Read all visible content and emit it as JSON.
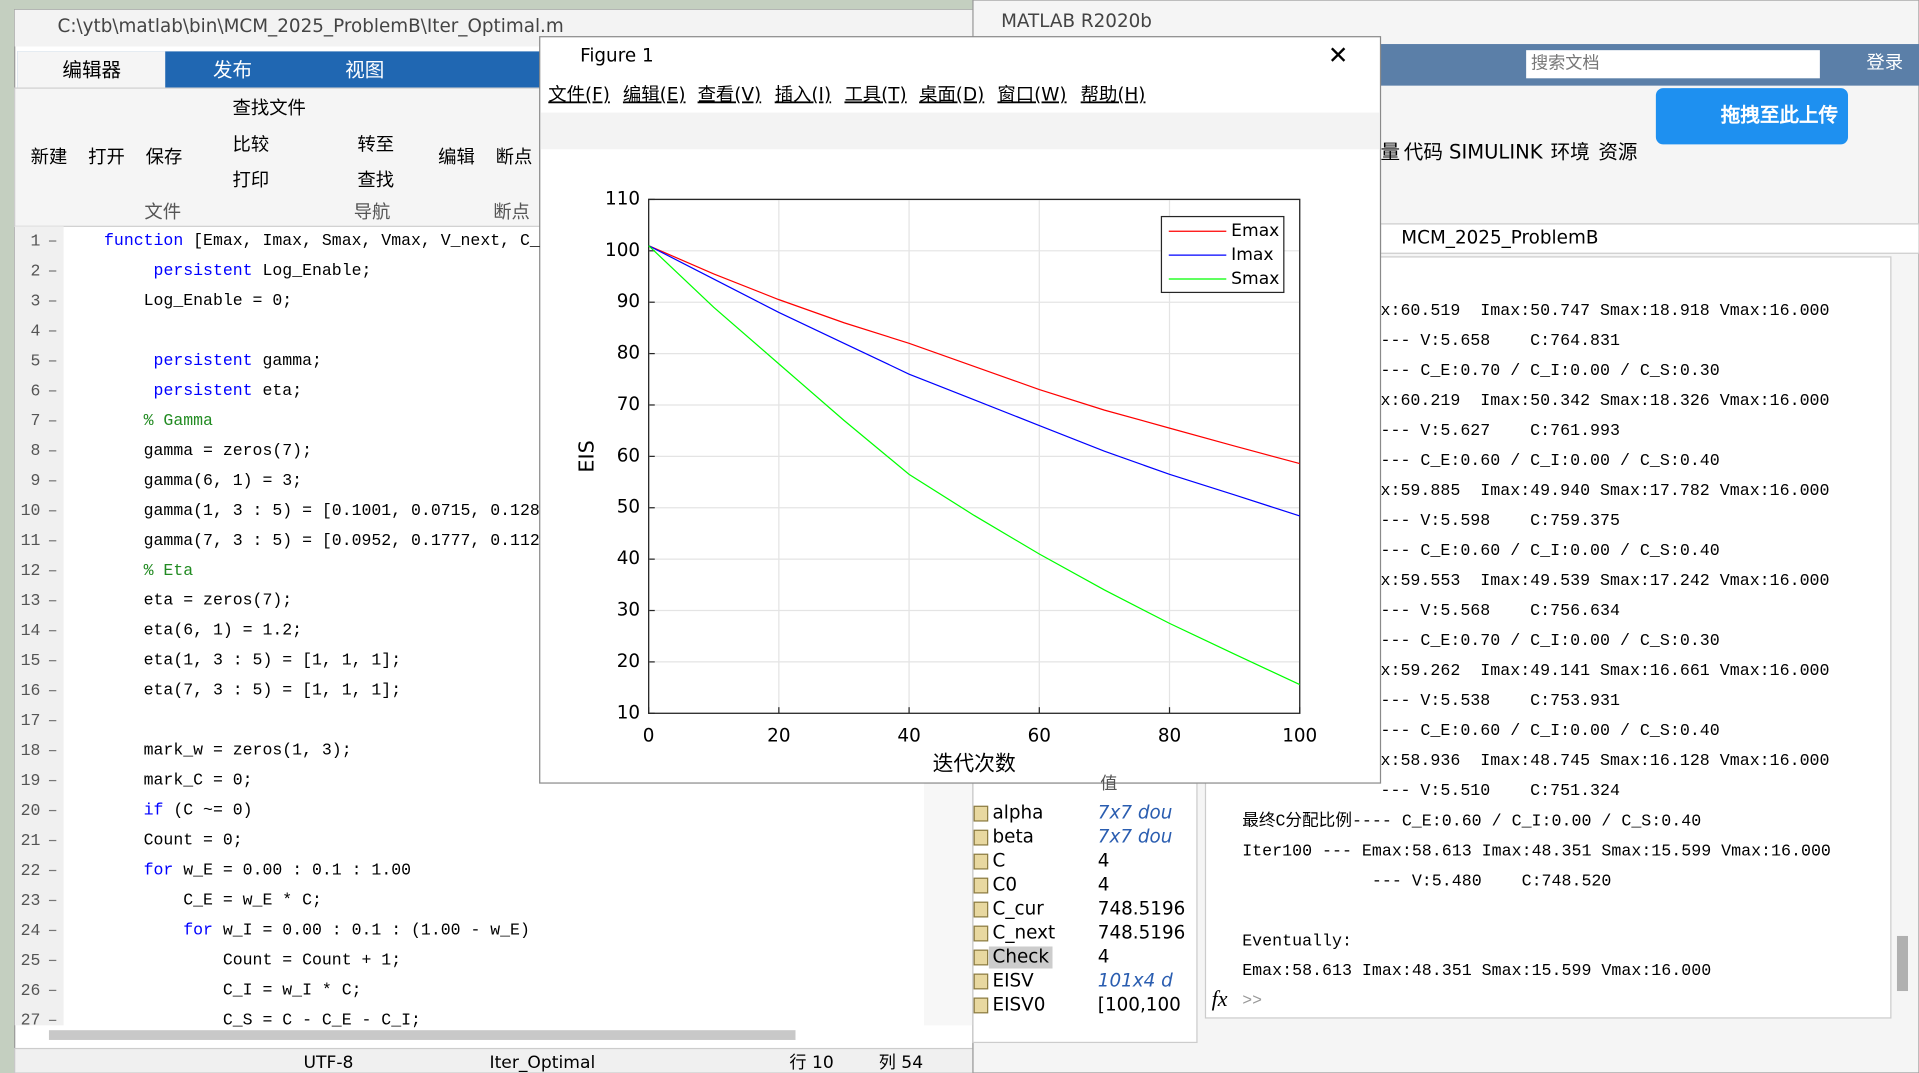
{
  "editor": {
    "title": "C:\\ytb\\matlab\\bin\\MCM_2025_ProblemB\\Iter_Optimal.m",
    "tabs": [
      "编辑器",
      "发布",
      "视图"
    ],
    "buttons": [
      "新建",
      "打开",
      "保存",
      "查找文件",
      "比较",
      "打印",
      "转至",
      "查找",
      "编辑",
      "断点"
    ],
    "groups": [
      "文件",
      "导航",
      "断点"
    ],
    "code": [
      {
        "n": 1,
        "text": "function [Emax, Imax, Smax, Vmax, V_next, C_"
      },
      {
        "n": 2,
        "text": "     persistent Log_Enable;"
      },
      {
        "n": 3,
        "text": "    Log_Enable = 0;"
      },
      {
        "n": 4
      },
      {
        "n": 5,
        "text": "     persistent gamma;"
      },
      {
        "n": 6,
        "text": "     persistent eta;"
      },
      {
        "n": 7,
        "text": "    % Gamma"
      },
      {
        "n": 8,
        "text": "    gamma = zeros(7);"
      },
      {
        "n": 9,
        "text": "    gamma(6, 1) = 3;"
      },
      {
        "n": 10,
        "text": "    gamma(1, 3 : 5) = [0.1001, 0.0715, 0.128"
      },
      {
        "n": 11,
        "text": "    gamma(7, 3 : 5) = [0.0952, 0.1777, 0.112"
      },
      {
        "n": 12,
        "text": "    % Eta"
      },
      {
        "n": 13,
        "text": "    eta = zeros(7);"
      },
      {
        "n": 14,
        "text": "    eta(6, 1) = 1.2;"
      },
      {
        "n": 15,
        "text": "    eta(1, 3 : 5) = [1, 1, 1];"
      },
      {
        "n": 16,
        "text": "    eta(7, 3 : 5) = [1, 1, 1];"
      },
      {
        "n": 17
      },
      {
        "n": 18,
        "text": "    mark_w = zeros(1, 3);"
      },
      {
        "n": 19,
        "text": "    mark_C = 0;"
      },
      {
        "n": 20,
        "text": "    if (C ~= 0)"
      },
      {
        "n": 21,
        "text": "    Count = 0;"
      },
      {
        "n": 22,
        "text": "    for w_E = 0.00 : 0.1 : 1.00"
      },
      {
        "n": 23,
        "text": "        C_E = w_E * C;"
      },
      {
        "n": 24,
        "text": "        for w_I = 0.00 : 0.1 : (1.00 - w_E)"
      },
      {
        "n": 25,
        "text": "            Count = Count + 1;"
      },
      {
        "n": 26,
        "text": "            C_I = w_I * C;"
      },
      {
        "n": 27,
        "text": "            C_S = C - C_E - C_I;"
      }
    ],
    "status": [
      "UTF-8",
      "Iter_Optimal",
      "行 10",
      "列 54"
    ]
  },
  "figure": {
    "title": "Figure 1",
    "menu": [
      "文件(F)",
      "编辑(E)",
      "查看(V)",
      "插入(I)",
      "工具(T)",
      "桌面(D)",
      "窗口(W)",
      "帮助(H)"
    ]
  },
  "main": {
    "title": "MATLAB R2020b",
    "search": "搜索文档",
    "login": "登录",
    "upload": "拖拽至此上传",
    "toolbar": [
      "量",
      "代码",
      "SIMULINK",
      "环境",
      "资源"
    ],
    "path": "MCM_2025_ProblemB"
  },
  "workspace": {
    "header": "值",
    "rows": [
      [
        "alpha",
        "7x7 dou"
      ],
      [
        "beta",
        "7x7 dou"
      ],
      [
        "C",
        "4"
      ],
      [
        "C0",
        "4"
      ],
      [
        "C_cur",
        "748.5196"
      ],
      [
        "C_next",
        "748.5196"
      ],
      [
        "Check",
        "4"
      ],
      [
        "EISV",
        "101x4 d"
      ],
      [
        "EISV0",
        "[100,100"
      ]
    ]
  },
  "command_window": {
    "clipped": [
      "x:60.519  Imax:50.747 Smax:18.918 Vmax:16.000",
      "--- V:5.658    C:764.831",
      "--- C_E:0.70 / C_I:0.00 / C_S:0.30",
      "x:60.219  Imax:50.342 Smax:18.326 Vmax:16.000",
      "--- V:5.627    C:761.993",
      "--- C_E:0.60 / C_I:0.00 / C_S:0.40",
      "x:59.885  Imax:49.940 Smax:17.782 Vmax:16.000",
      "--- V:5.598    C:759.375",
      "--- C_E:0.60 / C_I:0.00 / C_S:0.40",
      "x:59.553  Imax:49.539 Smax:17.242 Vmax:16.000",
      "--- V:5.568    C:756.634",
      "--- C_E:0.70 / C_I:0.00 / C_S:0.30",
      "x:59.262  Imax:49.141 Smax:16.661 Vmax:16.000",
      "--- V:5.538    C:753.931",
      "--- C_E:0.60 / C_I:0.00 / C_S:0.40",
      "x:58.936  Imax:48.745 Smax:16.128 Vmax:16.000",
      "--- V:5.510    C:751.324"
    ],
    "lines": [
      "最终C分配比例---- C_E:0.60 / C_I:0.00 / C_S:0.40",
      "Iter100 --- Emax:58.613 Imax:48.351 Smax:15.599 Vmax:16.000",
      "             --- V:5.480    C:748.520",
      null,
      "Eventually:",
      "Emax:58.613 Imax:48.351 Smax:15.599 Vmax:16.000"
    ],
    "prompt": ">>"
  },
  "chart_data": {
    "type": "line",
    "x_label": "迭代次数",
    "y_label": "EIS",
    "x": [
      0,
      10,
      20,
      30,
      40,
      50,
      60,
      70,
      80,
      90,
      100
    ],
    "series": [
      {
        "name": "Emax",
        "color": "#ff0000",
        "values": [
          101,
          95.5,
          90.5,
          86,
          82,
          77.5,
          73,
          69,
          65.5,
          62,
          58.6
        ]
      },
      {
        "name": "Imax",
        "color": "#0000ff",
        "values": [
          101,
          94.5,
          88,
          82,
          76,
          71,
          66,
          61,
          56.5,
          52.5,
          48.4
        ]
      },
      {
        "name": "Smax",
        "color": "#00ff00",
        "values": [
          101,
          89,
          78,
          67,
          56.5,
          48.5,
          41,
          34,
          27.5,
          21.5,
          15.6
        ]
      }
    ],
    "xlim": [
      0,
      100
    ],
    "xticks": [
      0,
      20,
      40,
      60,
      80,
      100
    ],
    "ylim": [
      10,
      110
    ],
    "yticks": [
      10,
      20,
      30,
      40,
      50,
      60,
      70,
      80,
      90,
      100,
      110
    ],
    "grid": true,
    "legend": "northeast"
  }
}
